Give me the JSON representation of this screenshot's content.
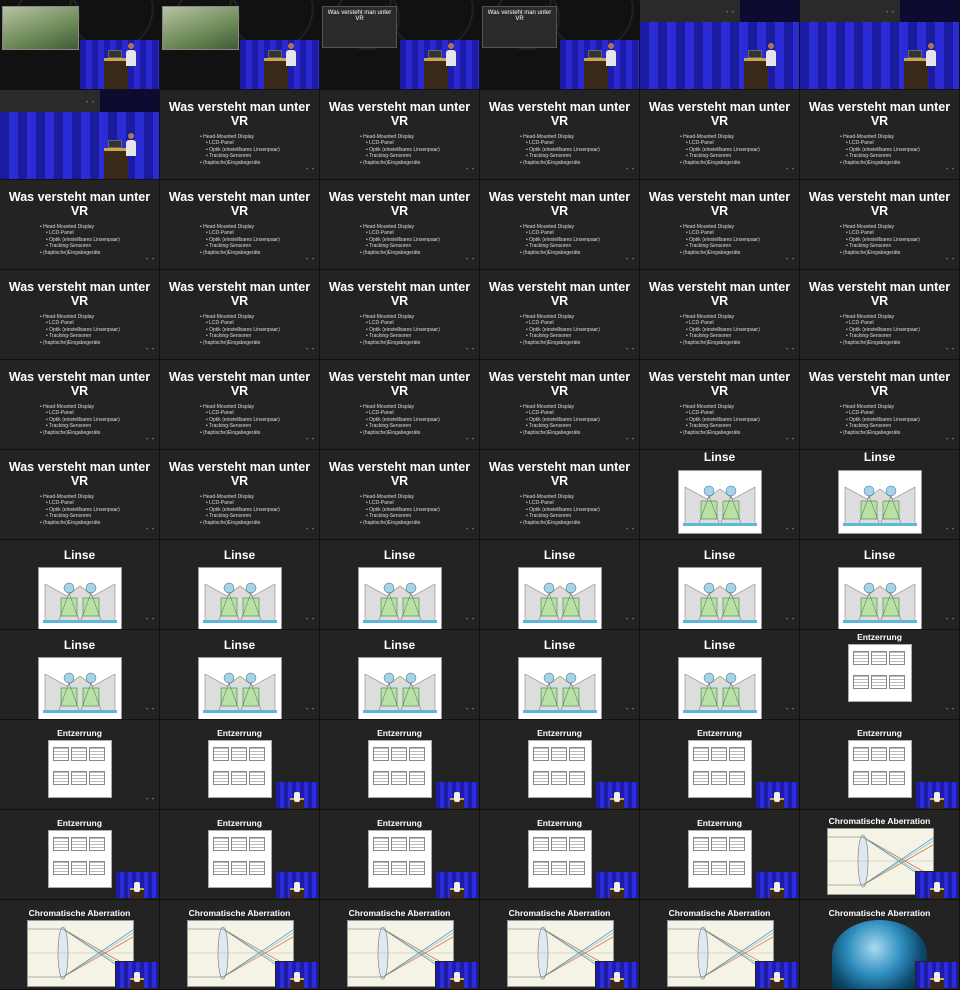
{
  "grid": {
    "columns": 6,
    "rows": 11
  },
  "colors": {
    "slide_bg": "#232323",
    "title": "#ffffff",
    "dots": "#4a78b4",
    "stage_screen": "#2a2ad0"
  },
  "slides": {
    "vr": {
      "title": "Was versteht man unter VR",
      "bullets": [
        {
          "text": "Head-Mounted Display",
          "sub": false
        },
        {
          "text": "LCD-Panel",
          "sub": true
        },
        {
          "text": "Optik (einstellbares Linsenpaar)",
          "sub": true
        },
        {
          "text": "Tracking-Sensoren",
          "sub": true
        },
        {
          "text": "(haptische)Eingabegeräte",
          "sub": false
        }
      ],
      "dots": "• •"
    },
    "linse": {
      "title": "Linse",
      "dots": "• •"
    },
    "entzerrung": {
      "title": "Entzerrung",
      "dots": "• •"
    },
    "chromatisch": {
      "title": "Chromatische Aberration"
    }
  },
  "frames": [
    "stage-photo",
    "stage-photo",
    "stage-slide",
    "stage-slide",
    "stage-wide",
    "stage-wide",
    "stage-wide",
    "vr",
    "vr",
    "vr",
    "vr",
    "vr",
    "vr",
    "vr",
    "vr",
    "vr",
    "vr",
    "vr",
    "vr",
    "vr",
    "vr",
    "vr",
    "vr",
    "vr",
    "vr",
    "vr",
    "vr",
    "vr",
    "vr",
    "vr",
    "vr",
    "vr",
    "vr",
    "vr",
    "linse-top",
    "linse-top",
    "linse",
    "linse",
    "linse",
    "linse",
    "linse",
    "linse",
    "linse",
    "linse",
    "linse",
    "linse",
    "linse",
    "entzerrung-top",
    "entzerrung",
    "entzerrung-pip",
    "entzerrung-pip",
    "entzerrung-pip",
    "entzerrung-pip",
    "entzerrung-pip",
    "entzerrung-pip",
    "entzerrung-pip",
    "entzerrung-pip",
    "entzerrung-pip",
    "entzerrung-pip",
    "chromatisch-top",
    "chromatisch",
    "chromatisch",
    "chromatisch",
    "chromatisch",
    "chromatisch",
    "chromatisch-photo"
  ]
}
